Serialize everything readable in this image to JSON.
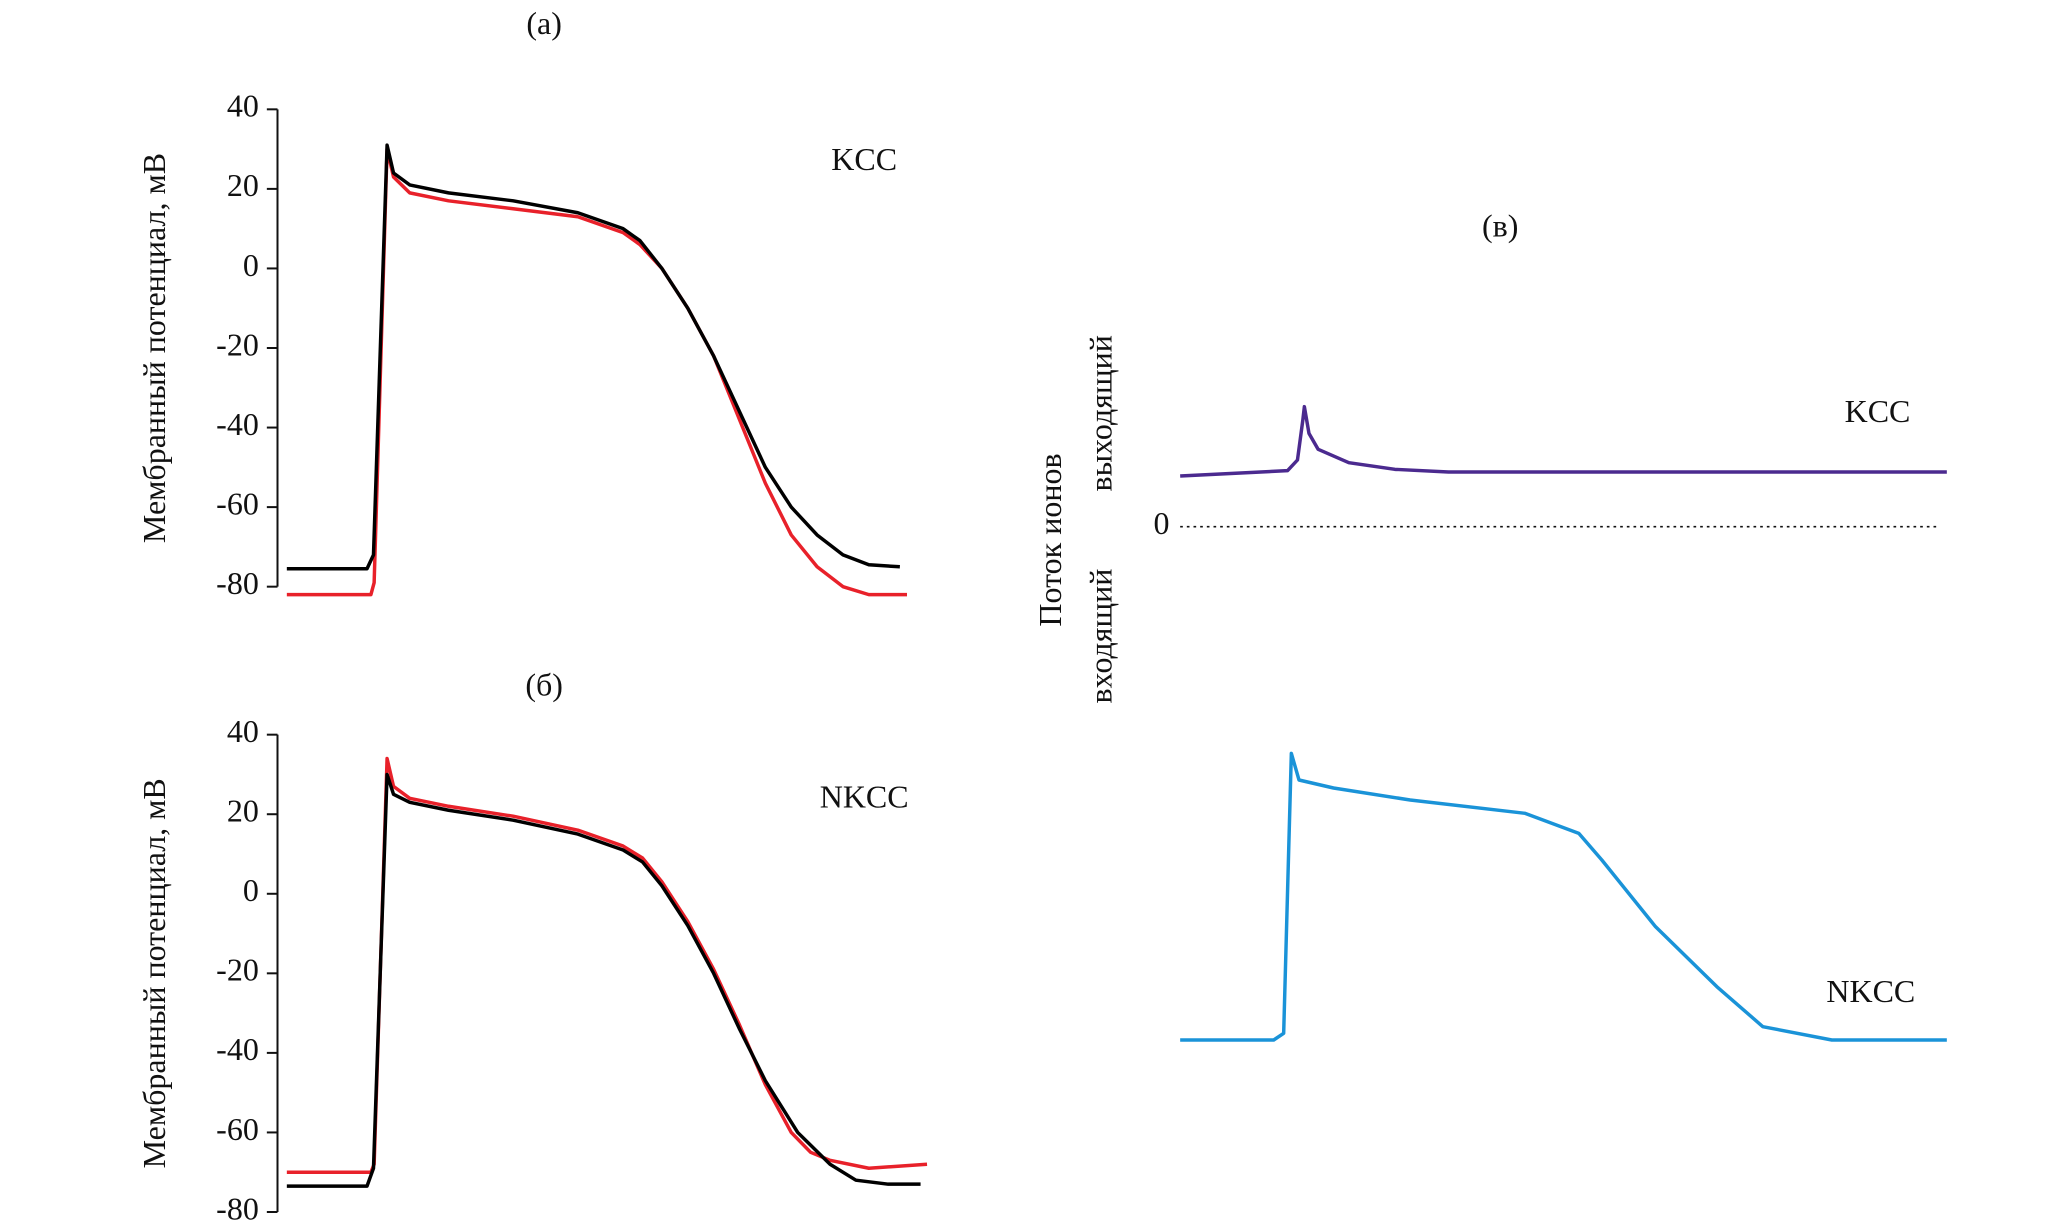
{
  "chart_data": [
    {
      "type": "line",
      "title": "(а)",
      "annotation": "KCC",
      "ylabel": "Мембранный потенциал, мВ",
      "ylim": [
        -80,
        40
      ],
      "yticks": [
        -80,
        -60,
        -40,
        -20,
        0,
        20,
        40
      ],
      "xlim": [
        0,
        100
      ],
      "series": [
        {
          "color": "#e8212a",
          "x": [
            0,
            13,
            13.5,
            15.5,
            16.5,
            19,
            25,
            35,
            45,
            52,
            54.6,
            58,
            62,
            66,
            70,
            74,
            78,
            82,
            86,
            90,
            95.9
          ],
          "values": [
            -82,
            -82,
            -79,
            30,
            23,
            19,
            17,
            15,
            13,
            9,
            6,
            0,
            -10,
            -22,
            -38,
            -54,
            -67,
            -75,
            -80,
            -82,
            -82
          ]
        },
        {
          "color": "#000000",
          "x": [
            0,
            12.4,
            13.4,
            15.5,
            16.5,
            19,
            25,
            35,
            45,
            52,
            54.6,
            58,
            62,
            66,
            70,
            74,
            78,
            82,
            86,
            90,
            94.8
          ],
          "values": [
            -75.5,
            -75.5,
            -72,
            31,
            24,
            21,
            19,
            17,
            14,
            10,
            7,
            0,
            -10,
            -22,
            -36,
            -50,
            -60,
            -67,
            -72,
            -74.5,
            -75
          ]
        }
      ]
    },
    {
      "type": "line",
      "title": "(б)",
      "annotation": "NKCC",
      "ylabel": "Мембранный потенциал, мВ",
      "ylim": [
        -80,
        40
      ],
      "yticks": [
        -80,
        -60,
        -40,
        -20,
        0,
        20,
        40
      ],
      "xlim": [
        0,
        100
      ],
      "series": [
        {
          "color": "#e8212a",
          "x": [
            0,
            13,
            13.5,
            15.5,
            16.5,
            19,
            25,
            35,
            45,
            52,
            55,
            58,
            62,
            66,
            70,
            74,
            78,
            81,
            84,
            90,
            99
          ],
          "values": [
            -70,
            -70,
            -68,
            34,
            27,
            24,
            22,
            19.5,
            16,
            12,
            9,
            3,
            -7,
            -19,
            -33,
            -48,
            -60,
            -65,
            -67,
            -69,
            -68
          ]
        },
        {
          "color": "#000000",
          "x": [
            0,
            12.4,
            13.4,
            15.5,
            16.5,
            19,
            25,
            35,
            45,
            52,
            55,
            58,
            62,
            66,
            70,
            74,
            79,
            84,
            88,
            93,
            98
          ],
          "values": [
            -73.5,
            -73.5,
            -69,
            30,
            25,
            23,
            21,
            18.5,
            15,
            11,
            8,
            2,
            -8,
            -20,
            -34,
            -47,
            -60,
            -68,
            -72,
            -73,
            -73
          ]
        }
      ]
    },
    {
      "type": "line",
      "title": "(в)",
      "ylabel": "Поток ионов",
      "ylabel_sub": [
        "входящий",
        "выходящий"
      ],
      "ylim": [
        -40.5,
        14.5
      ],
      "yticks": [
        0
      ],
      "xlim": [
        0,
        100
      ],
      "series": [
        {
          "name": "KCC",
          "color": "#4b2a8f",
          "x": [
            0,
            14,
            15.3,
            16,
            16.2,
            16.8,
            18,
            22,
            28,
            35,
            100
          ],
          "values": [
            3.8,
            4.2,
            5,
            8,
            9,
            7,
            5.8,
            4.8,
            4.3,
            4.1,
            4.1
          ]
        },
        {
          "name": "NKCC",
          "color": "#1a93d8",
          "x": [
            0,
            12.2,
            13.5,
            14.5,
            15.5,
            20,
            30,
            45,
            52,
            55,
            62,
            70,
            76,
            85,
            100
          ],
          "values": [
            -38.5,
            -38.5,
            -38,
            -17,
            -19,
            -19.6,
            -20.5,
            -21.5,
            -23,
            -25,
            -30,
            -34.5,
            -37.5,
            -38.5,
            -38.5
          ]
        }
      ]
    }
  ]
}
